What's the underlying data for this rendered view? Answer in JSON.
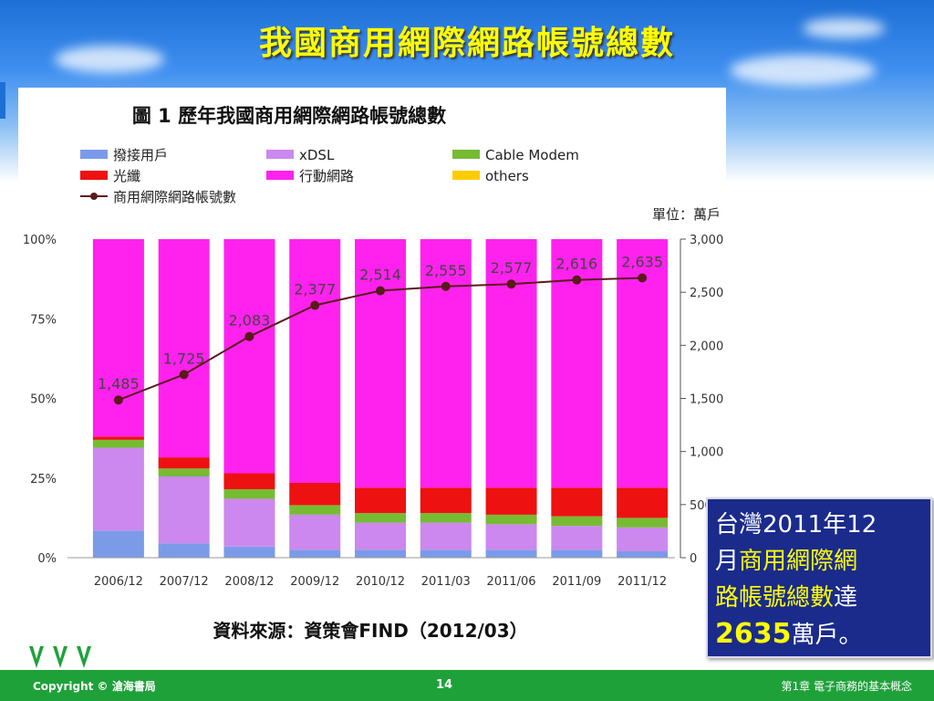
{
  "slide": {
    "title": "我國商用網際網路帳號總數",
    "callout": {
      "line1": "台灣2011年12",
      "line2_prefix": "月",
      "line2_hl": "商用網際網",
      "line3_hl": "路帳號總數",
      "line3_suffix": "達",
      "number": "2635",
      "unit": "萬戶。"
    },
    "footer": {
      "copyright": "Copyright © 滄海書局",
      "page": "14",
      "chapter": "第1章 電子商務的基本概念"
    }
  },
  "colors": {
    "title": "#ffff00",
    "dialup": "#7b9be8",
    "xdsl": "#cc88ee",
    "cable": "#77bb33",
    "fiber": "#ee1111",
    "mobile": "#ff22ee",
    "others": "#ffcc00",
    "line": "#5a1a1a",
    "callout_bg": "#1a2b8c",
    "footer": "#1fa13a"
  },
  "chart_data": {
    "type": "bar",
    "stacked": true,
    "title": "圖 1 歷年我國商用網際網路帳號總數",
    "unit_label": "單位：萬戶",
    "source": "資料來源：資策會FIND（2012/03）",
    "categories": [
      "2006/12",
      "2007/12",
      "2008/12",
      "2009/12",
      "2010/12",
      "2011/03",
      "2011/06",
      "2011/09",
      "2011/12"
    ],
    "y_left": {
      "ticks": [
        "0%",
        "25%",
        "50%",
        "75%",
        "100%"
      ],
      "range": [
        0,
        100
      ]
    },
    "y_right": {
      "ticks": [
        "0",
        "500",
        "1,000",
        "1,500",
        "2,000",
        "2,500",
        "3,000"
      ],
      "range": [
        0,
        3000
      ]
    },
    "series": [
      {
        "name": "撥接用戶",
        "values": [
          8.5,
          4.5,
          3.5,
          2.5,
          2.5,
          2.5,
          2.5,
          2.5,
          2
        ]
      },
      {
        "name": "xDSL",
        "values": [
          26,
          21,
          15,
          11,
          8.5,
          8.5,
          8,
          7.5,
          7.5
        ]
      },
      {
        "name": "Cable Modem",
        "values": [
          2.5,
          2.5,
          3,
          3,
          3,
          3,
          3,
          3,
          3
        ]
      },
      {
        "name": "光纖",
        "values": [
          1,
          3.5,
          5,
          7,
          8,
          8,
          8.5,
          9,
          9.5
        ]
      },
      {
        "name": "行動網路",
        "values": [
          62,
          68.5,
          73.5,
          76.5,
          78,
          78,
          78,
          78,
          78
        ]
      },
      {
        "name": "others",
        "values": [
          0,
          0,
          0,
          0,
          0,
          0,
          0,
          0,
          0
        ]
      }
    ],
    "line": {
      "name": "商用網際網路帳號數",
      "values": [
        1485,
        1725,
        2083,
        2377,
        2514,
        2555,
        2577,
        2616,
        2635
      ],
      "labels": [
        "1,485",
        "1,725",
        "2,083",
        "2,377",
        "2,514",
        "2,555",
        "2,577",
        "2,616",
        "2,635"
      ]
    }
  }
}
